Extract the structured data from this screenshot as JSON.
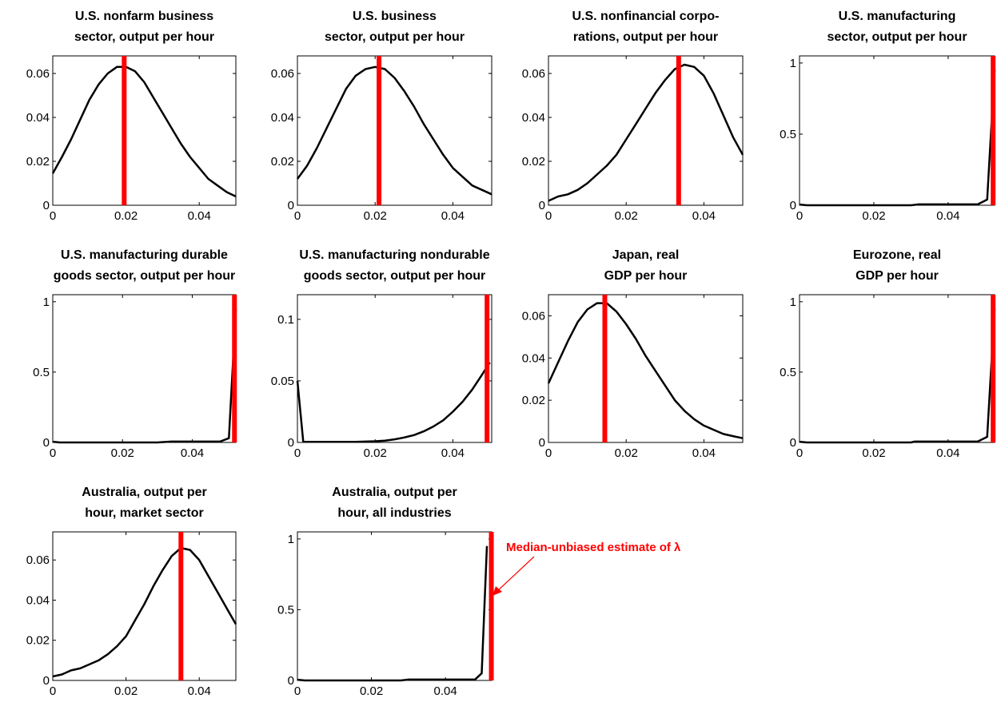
{
  "annotation": {
    "text": "Median-unbiased estimate of λ",
    "color": "#ff0000"
  },
  "chart_data": [
    {
      "type": "line",
      "title": [
        "U.S. nonfarm business",
        "sector, output per hour"
      ],
      "xlim": [
        0,
        0.05
      ],
      "ylim": [
        0,
        0.068
      ],
      "xticks": [
        "0",
        "0.02",
        "0.04"
      ],
      "xtick_values": [
        0,
        0.02,
        0.04
      ],
      "yticks": [
        "0",
        "0.02",
        "0.04",
        "0.06"
      ],
      "ytick_values": [
        0,
        0.02,
        0.04,
        0.06
      ],
      "x": [
        0,
        0.0025,
        0.005,
        0.0075,
        0.01,
        0.0125,
        0.015,
        0.0175,
        0.02,
        0.0225,
        0.025,
        0.0275,
        0.03,
        0.0325,
        0.035,
        0.0375,
        0.04,
        0.0425,
        0.045,
        0.0475,
        0.05
      ],
      "y": [
        0.0145,
        0.022,
        0.03,
        0.039,
        0.048,
        0.055,
        0.06,
        0.063,
        0.063,
        0.061,
        0.056,
        0.049,
        0.042,
        0.035,
        0.028,
        0.022,
        0.017,
        0.012,
        0.009,
        0.006,
        0.004
      ],
      "estimate": 0.0195,
      "line_color": "#000000",
      "estimate_color": "#ff0000"
    },
    {
      "type": "line",
      "title": [
        "U.S. business",
        "sector, output per hour"
      ],
      "xlim": [
        0,
        0.05
      ],
      "ylim": [
        0,
        0.068
      ],
      "xticks": [
        "0",
        "0.02",
        "0.04"
      ],
      "xtick_values": [
        0,
        0.02,
        0.04
      ],
      "yticks": [
        "0",
        "0.02",
        "0.04",
        "0.06"
      ],
      "ytick_values": [
        0,
        0.02,
        0.04,
        0.06
      ],
      "x": [
        0,
        0.0025,
        0.005,
        0.0075,
        0.01,
        0.0125,
        0.015,
        0.0175,
        0.02,
        0.0225,
        0.025,
        0.0275,
        0.03,
        0.0325,
        0.035,
        0.0375,
        0.04,
        0.0425,
        0.045,
        0.0475,
        0.05
      ],
      "y": [
        0.012,
        0.018,
        0.026,
        0.035,
        0.044,
        0.053,
        0.059,
        0.062,
        0.063,
        0.062,
        0.058,
        0.052,
        0.045,
        0.037,
        0.03,
        0.023,
        0.017,
        0.013,
        0.009,
        0.007,
        0.005
      ],
      "estimate": 0.021,
      "line_color": "#000000",
      "estimate_color": "#ff0000"
    },
    {
      "type": "line",
      "title": [
        "U.S. nonfinancial corpo-",
        "rations, output per hour"
      ],
      "xlim": [
        0,
        0.05
      ],
      "ylim": [
        0,
        0.068
      ],
      "xticks": [
        "0",
        "0.02",
        "0.04"
      ],
      "xtick_values": [
        0,
        0.02,
        0.04
      ],
      "yticks": [
        "0",
        "0.02",
        "0.04",
        "0.06"
      ],
      "ytick_values": [
        0,
        0.02,
        0.04,
        0.06
      ],
      "x": [
        0,
        0.0025,
        0.005,
        0.0075,
        0.01,
        0.0125,
        0.015,
        0.0175,
        0.02,
        0.0225,
        0.025,
        0.0275,
        0.03,
        0.0325,
        0.035,
        0.0375,
        0.04,
        0.0425,
        0.045,
        0.0475,
        0.05
      ],
      "y": [
        0.002,
        0.004,
        0.005,
        0.007,
        0.01,
        0.014,
        0.018,
        0.023,
        0.03,
        0.037,
        0.044,
        0.051,
        0.057,
        0.062,
        0.064,
        0.063,
        0.059,
        0.051,
        0.041,
        0.031,
        0.023
      ],
      "estimate": 0.0335,
      "line_color": "#000000",
      "estimate_color": "#ff0000"
    },
    {
      "type": "line",
      "title": [
        "U.S. manufacturing",
        "sector, output per hour"
      ],
      "xlim": [
        0,
        0.0525
      ],
      "ylim": [
        0,
        1.05
      ],
      "xticks": [
        "0",
        "0.02",
        "0.04"
      ],
      "xtick_values": [
        0,
        0.02,
        0.04
      ],
      "yticks": [
        "0",
        "0.5",
        "1"
      ],
      "ytick_values": [
        0,
        0.5,
        1
      ],
      "x": [
        0,
        0.002,
        0.01,
        0.02,
        0.03,
        0.032,
        0.04,
        0.045,
        0.048,
        0.0505,
        0.0525
      ],
      "y": [
        0.005,
        0,
        0,
        0,
        0,
        0.006,
        0.006,
        0.006,
        0.007,
        0.04,
        0.95
      ],
      "estimate": 0.0521,
      "line_color": "#000000",
      "estimate_color": "#ff0000"
    },
    {
      "type": "line",
      "title": [
        "U.S. manufacturing durable",
        "goods sector, output per hour"
      ],
      "xlim": [
        0,
        0.0525
      ],
      "ylim": [
        0,
        1.05
      ],
      "xticks": [
        "0",
        "0.02",
        "0.04"
      ],
      "xtick_values": [
        0,
        0.02,
        0.04
      ],
      "yticks": [
        "0",
        "0.5",
        "1"
      ],
      "ytick_values": [
        0,
        0.5,
        1
      ],
      "x": [
        0,
        0.002,
        0.01,
        0.02,
        0.03,
        0.034,
        0.04,
        0.045,
        0.048,
        0.0505,
        0.0525
      ],
      "y": [
        0.005,
        0,
        0,
        0,
        0,
        0.006,
        0.006,
        0.006,
        0.007,
        0.03,
        0.95
      ],
      "estimate": 0.0521,
      "line_color": "#000000",
      "estimate_color": "#ff0000"
    },
    {
      "type": "line",
      "title": [
        "U.S. manufacturing nondurable",
        "goods sector, output per hour"
      ],
      "xlim": [
        0,
        0.05
      ],
      "ylim": [
        0,
        0.12
      ],
      "xticks": [
        "0",
        "0.02",
        "0.04"
      ],
      "xtick_values": [
        0,
        0.02,
        0.04
      ],
      "yticks": [
        "0",
        "0.05",
        "0.1"
      ],
      "ytick_values": [
        0,
        0.05,
        0.1
      ],
      "x": [
        0,
        0.0015,
        0.005,
        0.01,
        0.015,
        0.02,
        0.0225,
        0.025,
        0.0275,
        0.03,
        0.0325,
        0.035,
        0.0375,
        0.04,
        0.0425,
        0.045,
        0.0475,
        0.0495
      ],
      "y": [
        0.05,
        0.0005,
        0.0005,
        0.0005,
        0.0005,
        0.001,
        0.0015,
        0.0025,
        0.004,
        0.006,
        0.009,
        0.013,
        0.018,
        0.025,
        0.033,
        0.043,
        0.055,
        0.065
      ],
      "estimate": 0.0488,
      "line_color": "#000000",
      "estimate_color": "#ff0000"
    },
    {
      "type": "line",
      "title": [
        "Japan, real",
        "GDP per hour"
      ],
      "xlim": [
        0,
        0.05
      ],
      "ylim": [
        0,
        0.07
      ],
      "xticks": [
        "0",
        "0.02",
        "0.04"
      ],
      "xtick_values": [
        0,
        0.02,
        0.04
      ],
      "yticks": [
        "0",
        "0.02",
        "0.04",
        "0.06"
      ],
      "ytick_values": [
        0,
        0.02,
        0.04,
        0.06
      ],
      "x": [
        0,
        0.0025,
        0.005,
        0.0075,
        0.01,
        0.0125,
        0.015,
        0.0175,
        0.02,
        0.0225,
        0.025,
        0.0275,
        0.03,
        0.0325,
        0.035,
        0.0375,
        0.04,
        0.0425,
        0.045,
        0.0475,
        0.05
      ],
      "y": [
        0.028,
        0.038,
        0.048,
        0.057,
        0.063,
        0.066,
        0.066,
        0.062,
        0.056,
        0.049,
        0.041,
        0.034,
        0.027,
        0.02,
        0.015,
        0.011,
        0.008,
        0.006,
        0.004,
        0.003,
        0.002
      ],
      "estimate": 0.0145,
      "line_color": "#000000",
      "estimate_color": "#ff0000"
    },
    {
      "type": "line",
      "title": [
        "Eurozone, real",
        "GDP per hour"
      ],
      "xlim": [
        0,
        0.0525
      ],
      "ylim": [
        0,
        1.05
      ],
      "xticks": [
        "0",
        "0.02",
        "0.04"
      ],
      "xtick_values": [
        0,
        0.02,
        0.04
      ],
      "yticks": [
        "0",
        "0.5",
        "1"
      ],
      "ytick_values": [
        0,
        0.5,
        1
      ],
      "x": [
        0,
        0.002,
        0.01,
        0.02,
        0.03,
        0.031,
        0.04,
        0.045,
        0.048,
        0.0505,
        0.0525
      ],
      "y": [
        0.005,
        0,
        0,
        0,
        0,
        0.006,
        0.006,
        0.006,
        0.007,
        0.04,
        0.95
      ],
      "estimate": 0.0521,
      "line_color": "#000000",
      "estimate_color": "#ff0000"
    },
    {
      "type": "line",
      "title": [
        "Australia, output per",
        "hour, market sector"
      ],
      "xlim": [
        0,
        0.05
      ],
      "ylim": [
        0,
        0.074
      ],
      "xticks": [
        "0",
        "0.02",
        "0.04"
      ],
      "xtick_values": [
        0,
        0.02,
        0.04
      ],
      "yticks": [
        "0",
        "0.02",
        "0.04",
        "0.06"
      ],
      "ytick_values": [
        0,
        0.02,
        0.04,
        0.06
      ],
      "x": [
        0,
        0.0025,
        0.005,
        0.0075,
        0.01,
        0.0125,
        0.015,
        0.0175,
        0.02,
        0.0225,
        0.025,
        0.0275,
        0.03,
        0.0325,
        0.035,
        0.0375,
        0.04,
        0.0425,
        0.045,
        0.0475,
        0.05
      ],
      "y": [
        0.002,
        0.003,
        0.005,
        0.006,
        0.008,
        0.01,
        0.013,
        0.017,
        0.022,
        0.03,
        0.038,
        0.047,
        0.055,
        0.062,
        0.066,
        0.065,
        0.06,
        0.052,
        0.044,
        0.036,
        0.028
      ],
      "estimate": 0.035,
      "line_color": "#000000",
      "estimate_color": "#ff0000"
    },
    {
      "type": "line",
      "title": [
        "Australia, output per",
        "hour, all industries"
      ],
      "xlim": [
        0,
        0.0525
      ],
      "ylim": [
        0,
        1.05
      ],
      "xticks": [
        "0",
        "0.02",
        "0.04"
      ],
      "xtick_values": [
        0,
        0.02,
        0.04
      ],
      "yticks": [
        "0",
        "0.5",
        "1"
      ],
      "ytick_values": [
        0,
        0.5,
        1
      ],
      "x": [
        0,
        0.002,
        0.01,
        0.02,
        0.028,
        0.03,
        0.04,
        0.045,
        0.048,
        0.0498,
        0.0512
      ],
      "y": [
        0.005,
        0,
        0,
        0,
        0,
        0.006,
        0.006,
        0.006,
        0.007,
        0.05,
        0.95
      ],
      "estimate": 0.0524,
      "line_color": "#000000",
      "estimate_color": "#ff0000"
    }
  ]
}
